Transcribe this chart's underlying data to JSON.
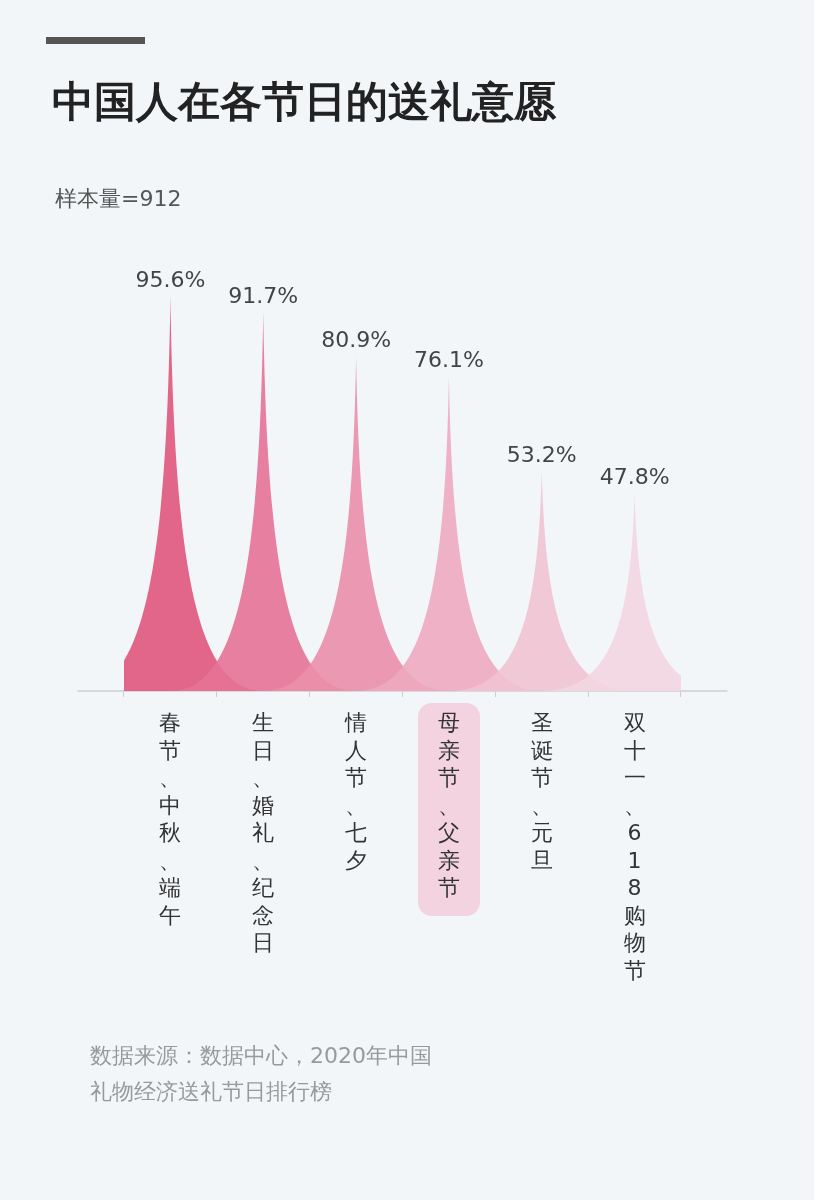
{
  "chart_data": {
    "type": "bar",
    "title": "中国人在各节日的送礼意愿",
    "subtitle": "样本量=912",
    "categories": [
      "春节、中秋、端午",
      "生日、婚礼、纪念日",
      "情人节、七夕",
      "母亲节、父亲节",
      "圣诞节、元旦",
      "双十一、618购物节"
    ],
    "values": [
      95.6,
      91.7,
      80.9,
      76.1,
      53.2,
      47.8
    ],
    "value_labels": [
      "95.6%",
      "91.7%",
      "80.9%",
      "76.1%",
      "53.2%",
      "47.8%"
    ],
    "colors": [
      "#e0557d",
      "#e57396",
      "#ea8fab",
      "#eeaabf",
      "#f1c3d2",
      "#f3d6e0"
    ],
    "annotations": [
      "数据来源：数据中心，2020年中国礼物经济送礼节日排行榜"
    ]
  }
}
